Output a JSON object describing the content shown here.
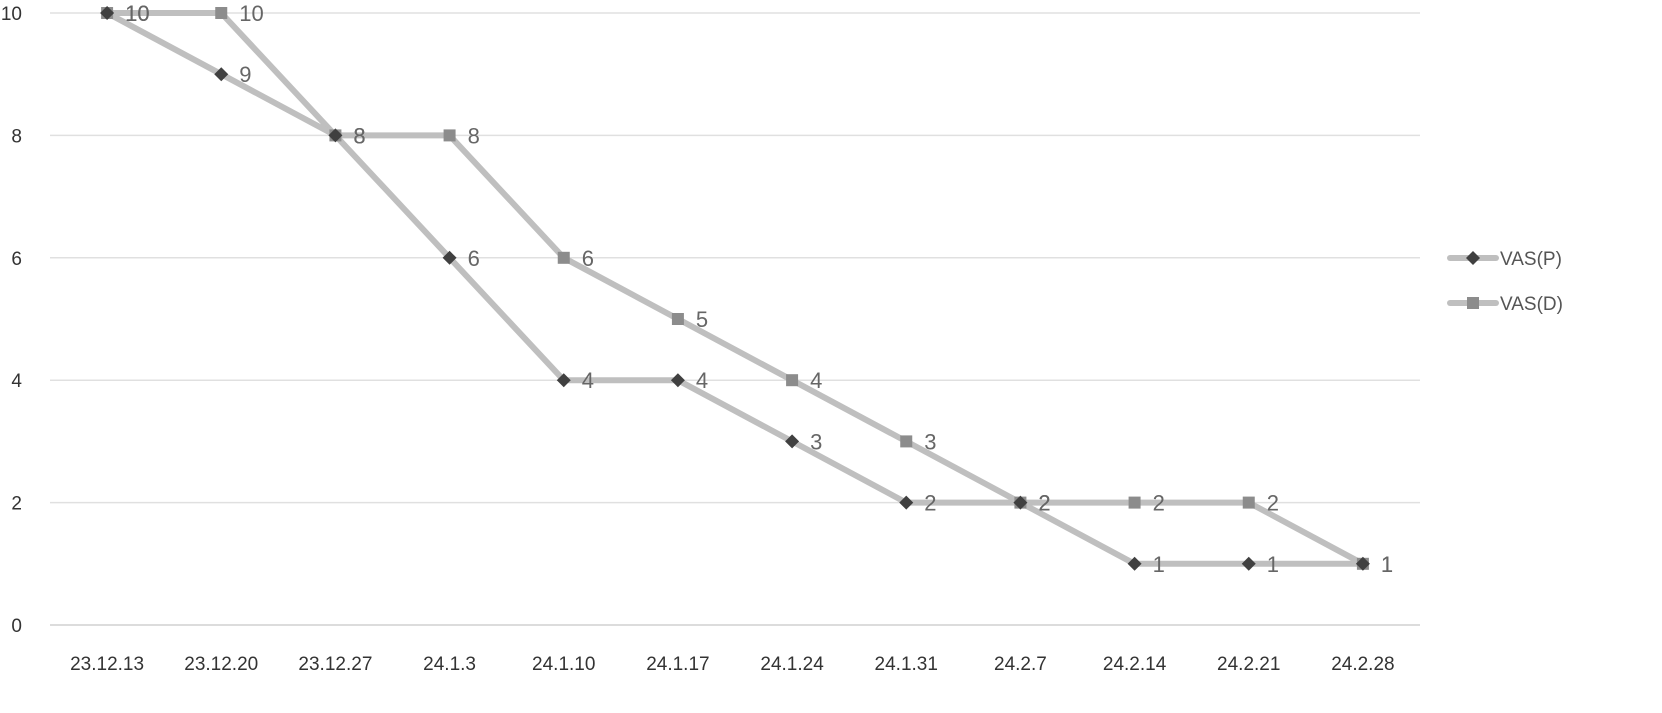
{
  "chart_data": {
    "type": "line",
    "title": "",
    "xlabel": "",
    "ylabel": "",
    "categories": [
      "23.12.13",
      "23.12.20",
      "23.12.27",
      "24.1.3",
      "24.1.10",
      "24.1.17",
      "24.1.24",
      "24.1.31",
      "24.2.7",
      "24.2.14",
      "24.2.21",
      "24.2.28"
    ],
    "ylim": [
      0,
      10
    ],
    "yticks": [
      0,
      2,
      4,
      6,
      8,
      10
    ],
    "grid": true,
    "legend_position": "right",
    "series": [
      {
        "name": "VAS(P)",
        "marker": "diamond",
        "line_color": "#bfbfbf",
        "marker_color": "#404040",
        "values": [
          10,
          9,
          8,
          6,
          4,
          4,
          3,
          2,
          2,
          1,
          1,
          1
        ]
      },
      {
        "name": "VAS(D)",
        "marker": "square",
        "line_color": "#bfbfbf",
        "marker_color": "#8c8c8c",
        "values": [
          10,
          10,
          8,
          8,
          6,
          5,
          4,
          3,
          2,
          2,
          2,
          1
        ]
      }
    ]
  }
}
